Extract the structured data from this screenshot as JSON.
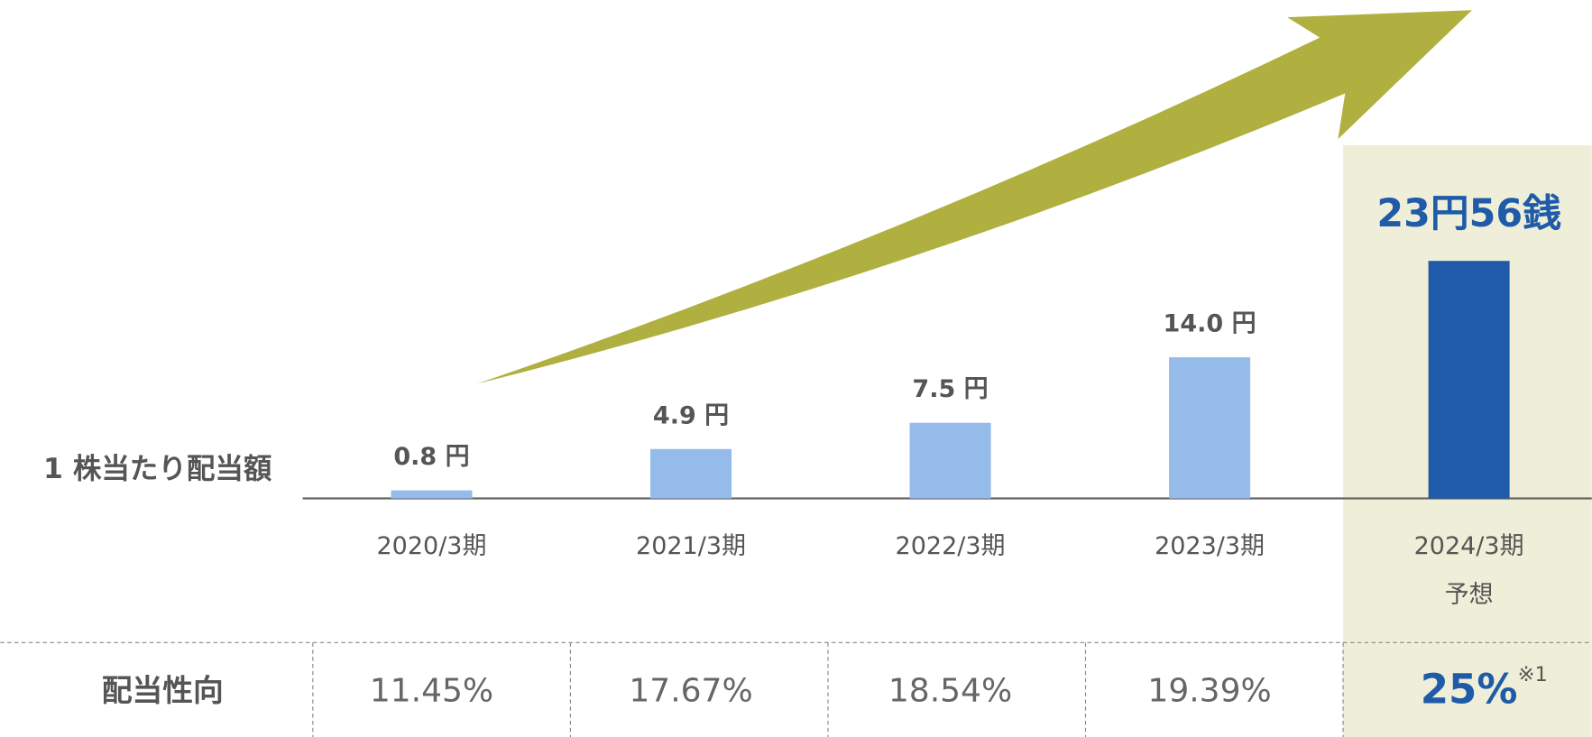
{
  "chart_data": {
    "type": "bar",
    "row_label": "1 株当たり配当額",
    "categories": [
      "2020/3期",
      "2021/3期",
      "2022/3期",
      "2023/3期",
      "2024/3期"
    ],
    "forecast_label": "予想",
    "values": [
      0.8,
      4.9,
      7.5,
      14.0,
      23.56
    ],
    "value_labels": [
      "0.8 円",
      "4.9 円",
      "7.5 円",
      "14.0 円",
      "23円56銭"
    ],
    "colors": [
      "#95bbeb",
      "#95bbeb",
      "#95bbeb",
      "#95bbeb",
      "#1f5ba8"
    ],
    "payout_ratio": {
      "label": "配当性向",
      "values": [
        "11.45%",
        "17.67%",
        "18.54%",
        "19.39%",
        "25%"
      ],
      "note": "※1"
    }
  }
}
